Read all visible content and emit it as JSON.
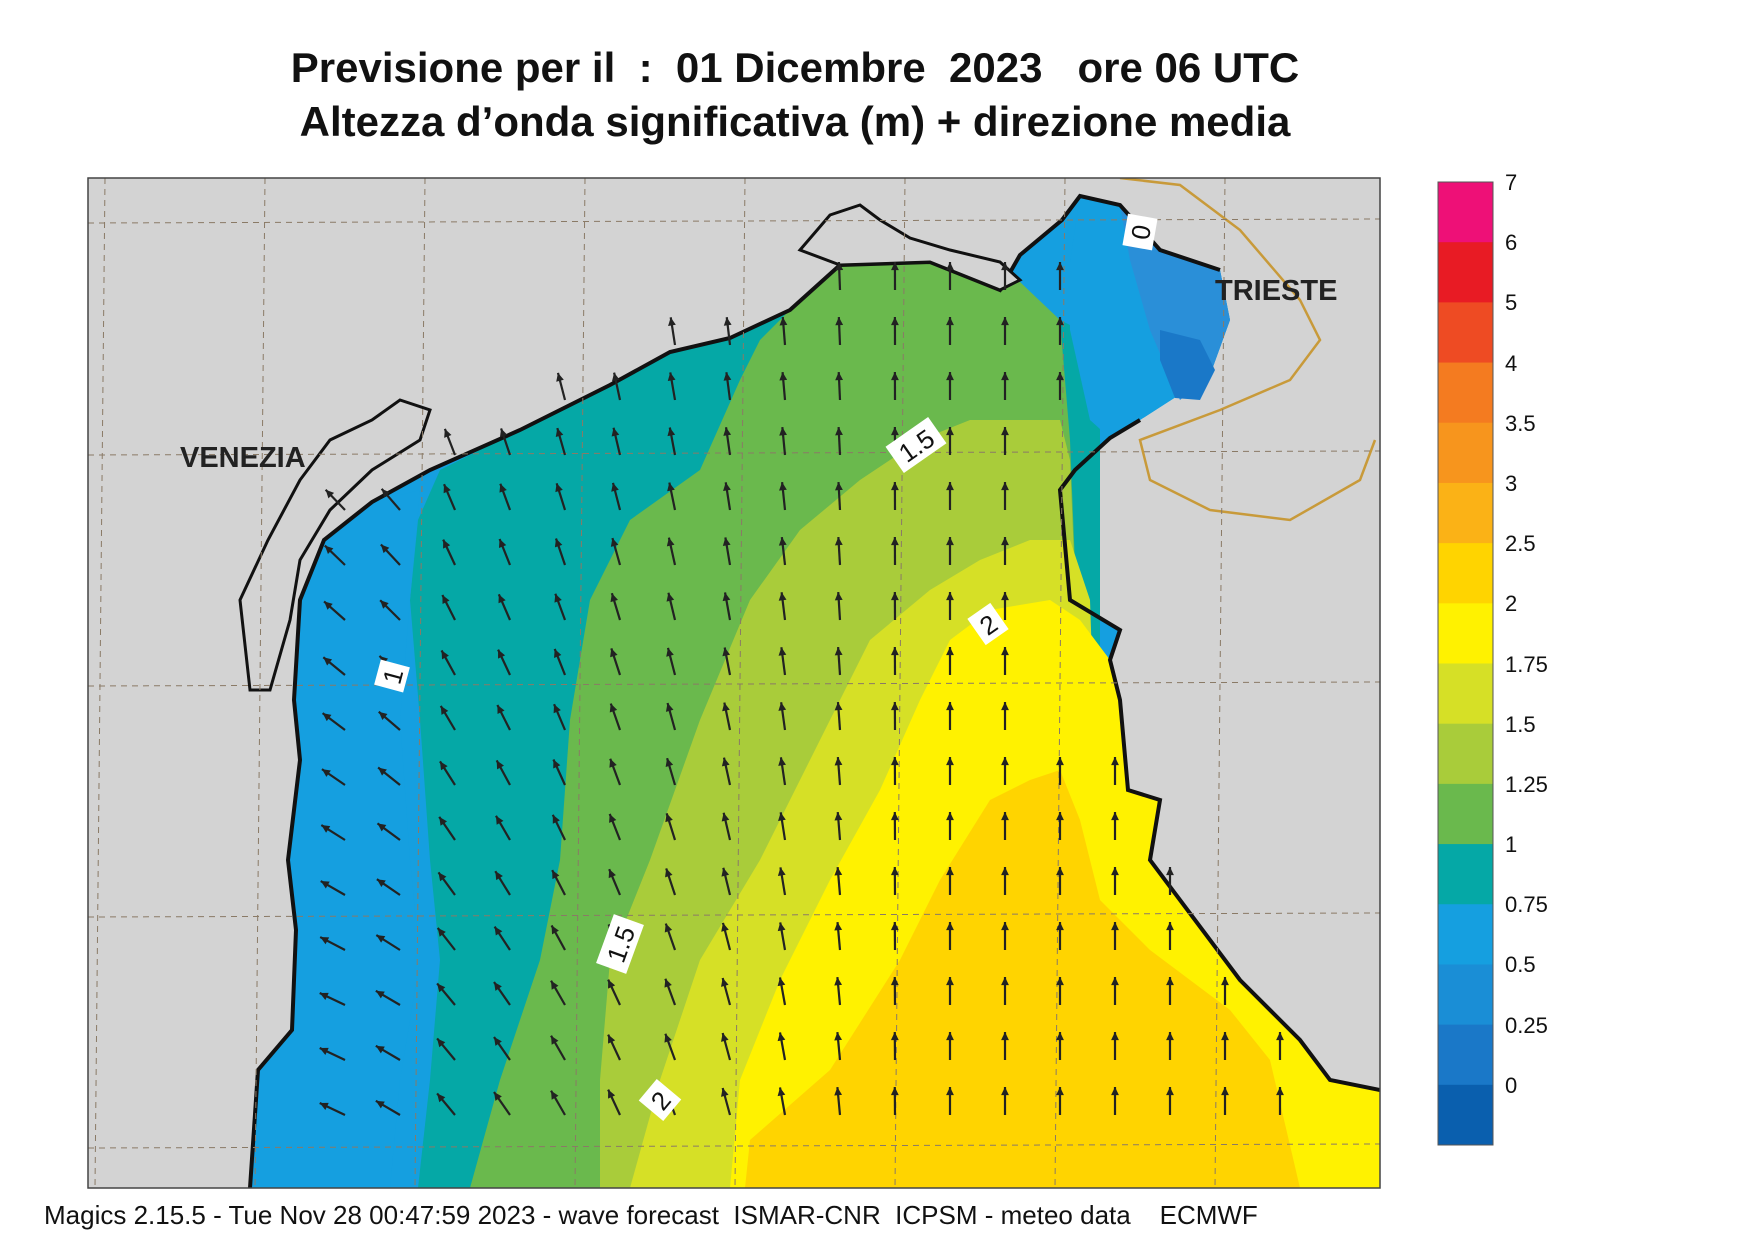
{
  "title": {
    "line1": "Previsione per il  :  01 Dicembre  2023   ore 06 UTC",
    "line2": "Altezza d’onda significativa (m) + direzione media"
  },
  "map": {
    "places": [
      {
        "name": "VENEZIA"
      },
      {
        "name": "TRIESTE"
      }
    ],
    "contour_labels": [
      "0",
      "1",
      "1.5",
      "1.5",
      "2",
      "2"
    ],
    "colors": {
      "land": "#d3d3d3",
      "sea_lt_025": "#0a5fae",
      "sea_025_05": "#1a78c8",
      "sea_05_075": "#2a8fd8",
      "sea_075_1": "#159fe0",
      "sea_1_125": "#05a8a6",
      "sea_125_15": "#6ab94d",
      "sea_15_175": "#a9cc3a",
      "sea_175_2": "#d6e026",
      "sea_2_25": "#fff200",
      "sea_25_3": "#ffd400",
      "border": "#c89a3a",
      "coast": "#111111"
    }
  },
  "colorbar": {
    "labels": [
      "7",
      "6",
      "5",
      "4",
      "3.5",
      "3",
      "2.5",
      "2",
      "1.75",
      "1.5",
      "1.25",
      "1",
      "0.75",
      "0.5",
      "0.25",
      "0"
    ],
    "colors": [
      "#ee1077",
      "#e81b24",
      "#ee4b23",
      "#f47b20",
      "#f7951d",
      "#fbb216",
      "#ffd400",
      "#fff200",
      "#d6e026",
      "#a9cc3a",
      "#6ab94d",
      "#05a8a6",
      "#159fe0",
      "#1a8ed6",
      "#1a78c8",
      "#0a5fae"
    ]
  },
  "footer": "Magics 2.15.5 - Tue Nov 28 00:47:59 2023 - wave forecast  ISMAR-CNR  ICPSM - meteo data    ECMWF"
}
